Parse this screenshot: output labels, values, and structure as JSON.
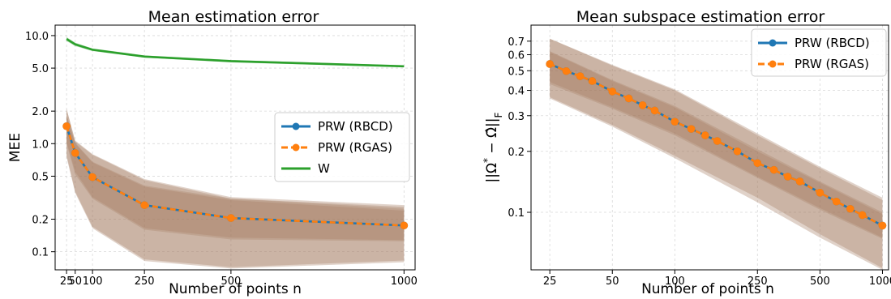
{
  "colors": {
    "rbcd": "#1f77b4",
    "rgas": "#ff7f0e",
    "w": "#2ca02c",
    "band": "#a0765a",
    "grid": "#d9d9d9"
  },
  "chart_data": [
    {
      "type": "line",
      "title": "Mean estimation error",
      "xlabel": "Number of points n",
      "ylabel": "MEE",
      "xscale": "linear",
      "yscale": "log",
      "xlim": [
        -8,
        1032
      ],
      "ylim": [
        0.068,
        12.5
      ],
      "xticks": [
        25,
        50,
        100,
        250,
        500,
        1000
      ],
      "xtick_labels": [
        "25",
        "50",
        "100",
        "250",
        "500",
        "1000"
      ],
      "yticks": [
        0.1,
        0.2,
        0.5,
        1.0,
        2.0,
        5.0,
        10.0
      ],
      "ytick_labels": [
        "0.1",
        "0.2",
        "0.5",
        "1.0",
        "2.0",
        "5.0",
        "10.0"
      ],
      "grid": true,
      "legend": "center-right",
      "x": [
        25,
        50,
        100,
        250,
        500,
        1000
      ],
      "series": [
        {
          "name": "PRW (RBCD)",
          "color_key": "rbcd",
          "style": "solid",
          "marker": "circle",
          "values": [
            1.45,
            0.82,
            0.49,
            0.27,
            0.205,
            0.175
          ],
          "band_outer_low": [
            0.78,
            0.36,
            0.17,
            0.085,
            0.072,
            0.083
          ],
          "band_outer_high": [
            2.1,
            1.05,
            0.79,
            0.46,
            0.31,
            0.26
          ],
          "band_inner_low": [
            1.05,
            0.55,
            0.32,
            0.165,
            0.135,
            0.128
          ],
          "band_inner_high": [
            1.8,
            1.0,
            0.67,
            0.4,
            0.3,
            0.24
          ]
        },
        {
          "name": "PRW (RGAS)",
          "color_key": "rgas",
          "style": "dashed",
          "marker": "circle",
          "values": [
            1.45,
            0.82,
            0.49,
            0.27,
            0.205,
            0.175
          ],
          "band_outer_low": [
            0.75,
            0.35,
            0.165,
            0.082,
            0.07,
            0.08
          ],
          "band_outer_high": [
            2.1,
            1.07,
            0.8,
            0.47,
            0.32,
            0.27
          ],
          "band_inner_low": [
            1.0,
            0.52,
            0.31,
            0.16,
            0.13,
            0.125
          ],
          "band_inner_high": [
            1.85,
            1.02,
            0.68,
            0.41,
            0.31,
            0.25
          ]
        },
        {
          "name": "W",
          "color_key": "w",
          "style": "solid",
          "marker": "none",
          "values": [
            9.3,
            8.3,
            7.4,
            6.4,
            5.8,
            5.2
          ],
          "band_low": [
            8.9,
            8.0,
            7.2,
            6.25,
            5.65,
            5.1
          ],
          "band_high": [
            9.7,
            8.6,
            7.6,
            6.55,
            5.95,
            5.3
          ]
        }
      ]
    },
    {
      "type": "line",
      "title": "Mean subspace estimation error",
      "xlabel": "Number of points n",
      "ylabel_parts": [
        "||Ω",
        "*",
        " − ",
        "Ω̂",
        "||",
        "F"
      ],
      "xscale": "log",
      "yscale": "log",
      "xlim": [
        20.3,
        1070
      ],
      "ylim": [
        0.052,
        0.84
      ],
      "xticks": [
        25,
        50,
        100,
        250,
        500,
        1000
      ],
      "xtick_labels": [
        "25",
        "50",
        "100",
        "250",
        "500",
        "1000"
      ],
      "yticks": [
        0.1,
        0.2,
        0.3,
        0.4,
        0.5,
        0.6,
        0.7
      ],
      "ytick_labels": [
        "0.1",
        "0.2",
        "0.3",
        "0.4",
        "0.5",
        "0.6",
        "0.7"
      ],
      "grid": true,
      "legend": "upper-right",
      "x": [
        25,
        30,
        35,
        40,
        50,
        60,
        70,
        80,
        100,
        120,
        140,
        160,
        200,
        250,
        300,
        350,
        400,
        500,
        600,
        700,
        800,
        1000
      ],
      "x_band": [
        25,
        50,
        100,
        250,
        500,
        1000
      ],
      "series": [
        {
          "name": "PRW (RBCD)",
          "color_key": "rbcd",
          "style": "solid",
          "marker": "circle",
          "values": [
            0.54,
            0.498,
            0.47,
            0.445,
            0.395,
            0.365,
            0.338,
            0.318,
            0.28,
            0.258,
            0.24,
            0.225,
            0.2,
            0.175,
            0.162,
            0.15,
            0.142,
            0.125,
            0.113,
            0.104,
            0.097,
            0.086
          ],
          "band_outer_low": [
            0.37,
            0.27,
            0.19,
            0.118,
            0.078,
            0.053
          ],
          "band_outer_high": [
            0.72,
            0.53,
            0.4,
            0.24,
            0.165,
            0.115
          ],
          "band_inner_low": [
            0.44,
            0.33,
            0.245,
            0.15,
            0.105,
            0.075
          ],
          "band_inner_high": [
            0.62,
            0.445,
            0.33,
            0.2,
            0.14,
            0.098
          ]
        },
        {
          "name": "PRW (RGAS)",
          "color_key": "rgas",
          "style": "dashed",
          "marker": "circle",
          "values": [
            0.54,
            0.498,
            0.47,
            0.445,
            0.395,
            0.365,
            0.338,
            0.318,
            0.28,
            0.258,
            0.24,
            0.225,
            0.2,
            0.175,
            0.162,
            0.15,
            0.142,
            0.125,
            0.113,
            0.104,
            0.097,
            0.086
          ],
          "band_outer_low": [
            0.365,
            0.265,
            0.185,
            0.112,
            0.075,
            0.052
          ],
          "band_outer_high": [
            0.72,
            0.535,
            0.405,
            0.245,
            0.168,
            0.118
          ],
          "band_inner_low": [
            0.43,
            0.325,
            0.24,
            0.148,
            0.103,
            0.074
          ],
          "band_inner_high": [
            0.625,
            0.45,
            0.335,
            0.205,
            0.142,
            0.1
          ]
        }
      ]
    }
  ]
}
